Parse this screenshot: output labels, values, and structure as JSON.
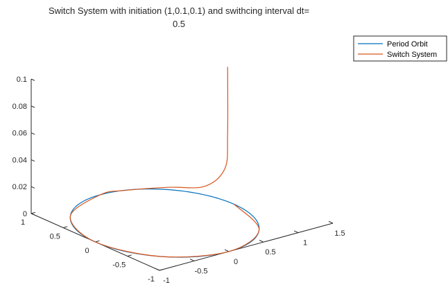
{
  "chart_data": {
    "type": "line",
    "title": "Switch System with initiation (1,0.1,0.1) and swithcing interval dt=",
    "title_line2": "0.5",
    "view": "3-D",
    "xlim": [
      -1,
      1.5
    ],
    "ylim": [
      -1,
      1
    ],
    "zlim": [
      0,
      0.1
    ],
    "x_ticks": [
      "-1",
      "-0.5",
      "0",
      "0.5",
      "1",
      "1.5"
    ],
    "y_ticks": [
      "-1",
      "-0.5",
      "0",
      "0.5",
      "1"
    ],
    "z_ticks": [
      "0",
      "0.02",
      "0.04",
      "0.06",
      "0.08",
      "0.1"
    ],
    "grid": false,
    "legend_position": "top-right",
    "series": [
      {
        "name": "Period Orbit",
        "color": "#0072BD",
        "shape": "unit circle in the z = 0 plane",
        "points": [
          [
            1,
            0,
            0
          ],
          [
            0.707,
            0.707,
            0
          ],
          [
            0,
            1,
            0
          ],
          [
            -0.707,
            0.707,
            0
          ],
          [
            -1,
            0,
            0
          ],
          [
            -0.707,
            -0.707,
            0
          ],
          [
            0,
            -1,
            0
          ],
          [
            0.707,
            -0.707,
            0
          ],
          [
            1,
            0,
            0
          ]
        ]
      },
      {
        "name": "Switch System",
        "color": "#D95319",
        "points": [
          [
            1,
            0.1,
            0.1
          ],
          [
            0.99,
            0.09,
            0.05
          ],
          [
            0.96,
            0.1,
            0.025
          ],
          [
            0.88,
            0.33,
            0.008
          ],
          [
            0.7,
            0.7,
            0.002
          ],
          [
            0.3,
            0.95,
            0
          ],
          [
            0,
            1,
            0
          ],
          [
            -0.707,
            0.707,
            0
          ],
          [
            -1,
            0,
            0
          ],
          [
            -0.707,
            -0.707,
            0
          ],
          [
            0,
            -1,
            0
          ],
          [
            0.707,
            -0.707,
            0
          ],
          [
            1,
            0,
            0
          ]
        ]
      }
    ]
  }
}
